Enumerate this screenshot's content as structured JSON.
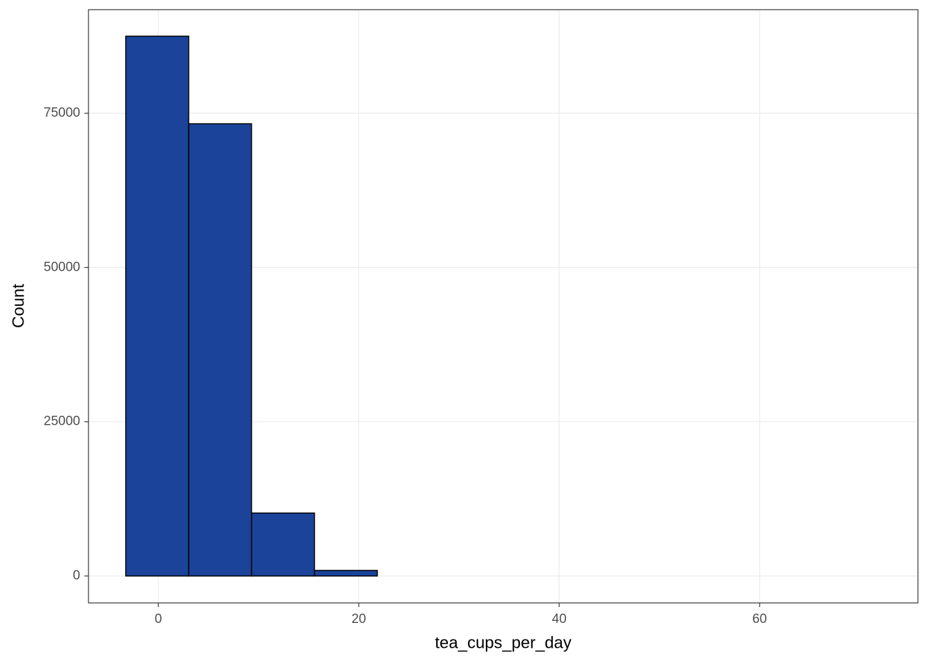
{
  "chart_data": {
    "type": "histogram",
    "x_label": "tea_cups_per_day",
    "y_label": "Count",
    "bins": [
      -3.25,
      3.03,
      9.3,
      15.58,
      21.85,
      28.13,
      34.4,
      40.68,
      46.95,
      53.23,
      59.5,
      65.78,
      72.05
    ],
    "values": [
      87500,
      73300,
      10200,
      900,
      0,
      0,
      0,
      0,
      0,
      0,
      0,
      0
    ],
    "color": "#1a4399",
    "edge_color": "#000000",
    "xlim": [
      -6.97,
      75.8
    ],
    "ylim": [
      -4366,
      91795
    ],
    "xticks": [
      0,
      20,
      40,
      60
    ],
    "yticks": [
      0,
      25000,
      50000,
      75000
    ],
    "grid": true
  }
}
